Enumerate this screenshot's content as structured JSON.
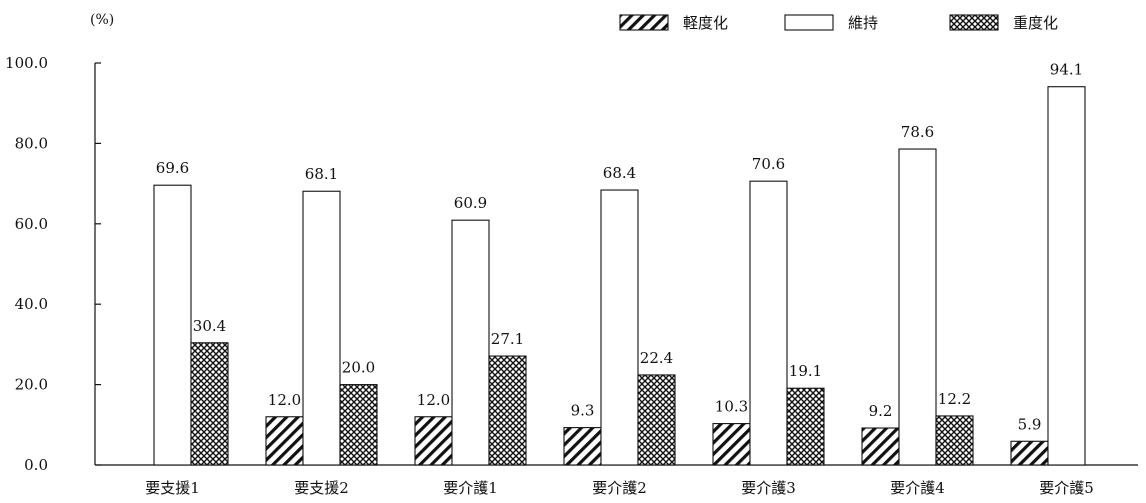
{
  "chart_data": {
    "type": "bar",
    "unit_label": "(%)",
    "categories": [
      "要支援1",
      "要支援2",
      "要介護1",
      "要介護2",
      "要介護3",
      "要介護4",
      "要介護5"
    ],
    "series": [
      {
        "name": "軽度化",
        "pattern": "hatch",
        "values": [
          null,
          12.0,
          12.0,
          9.3,
          10.3,
          9.2,
          5.9
        ]
      },
      {
        "name": "維持",
        "pattern": "blank",
        "values": [
          69.6,
          68.1,
          60.9,
          68.4,
          70.6,
          78.6,
          94.1
        ]
      },
      {
        "name": "重度化",
        "pattern": "crosshatch",
        "values": [
          30.4,
          20.0,
          27.1,
          22.4,
          19.1,
          12.2,
          null
        ]
      }
    ],
    "ylim": [
      0,
      100
    ],
    "yticks": [
      "0.0",
      "20.0",
      "40.0",
      "60.0",
      "80.0",
      "100.0"
    ],
    "legend_position": "top-right",
    "grid": false
  }
}
